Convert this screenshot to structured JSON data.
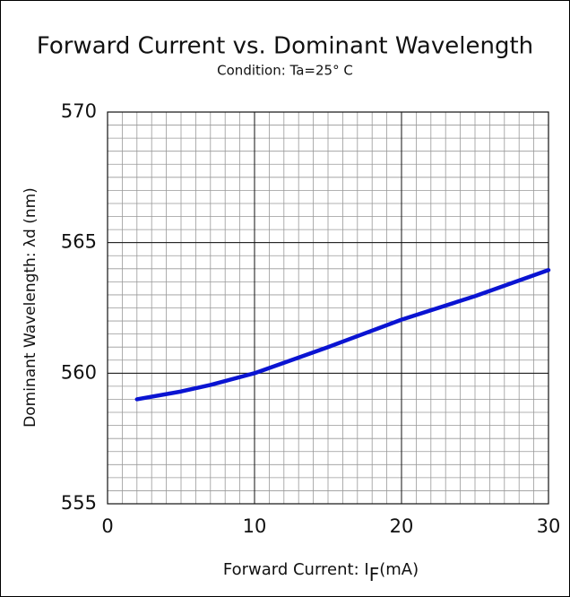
{
  "chart_data": {
    "type": "line",
    "title": "Forward Current vs. Dominant Wavelength",
    "subtitle": "Condition: Ta=25° C",
    "xlabel": {
      "text": "Forward Current: I",
      "subscript": "F",
      "suffix": "(mA)"
    },
    "ylabel": "Dominant Wavelength: λd (nm)",
    "x": [
      2,
      5,
      7,
      10,
      15,
      20,
      25,
      30
    ],
    "series": [
      {
        "name": "Dominant Wavelength",
        "color": "#0a14d2",
        "values": [
          559.0,
          559.3,
          559.55,
          560.0,
          561.0,
          562.05,
          562.95,
          563.95
        ]
      }
    ],
    "xlim": [
      0,
      30
    ],
    "xticks": [
      0,
      10,
      20,
      30
    ],
    "ylim": [
      555,
      570
    ],
    "yticks": [
      555,
      560,
      565,
      570
    ],
    "grid": true,
    "minor_grid": {
      "x": 1,
      "y": 0.5
    }
  }
}
